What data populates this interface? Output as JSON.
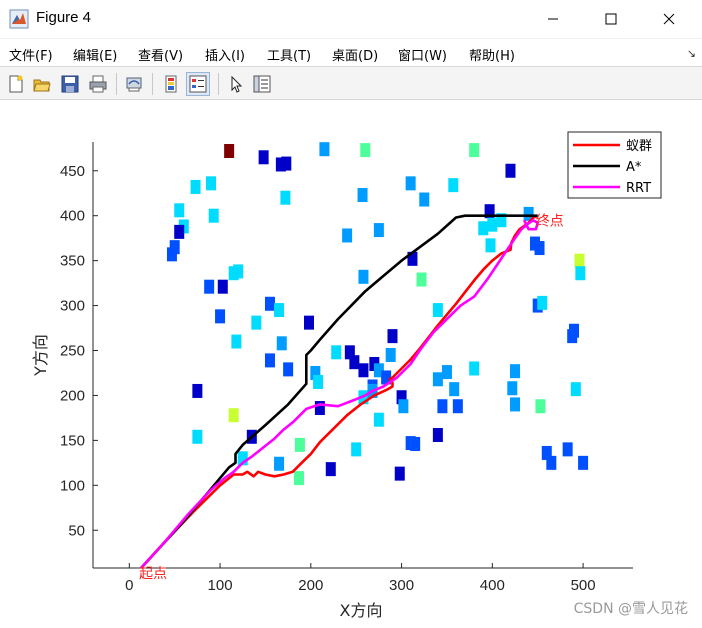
{
  "window": {
    "title": "Figure 4",
    "buttons": {
      "minimize": "minimize",
      "maximize": "maximize",
      "close": "close"
    }
  },
  "menu": {
    "items": [
      "文件(F)",
      "编辑(E)",
      "查看(V)",
      "插入(I)",
      "工具(T)",
      "桌面(D)",
      "窗口(W)",
      "帮助(H)"
    ],
    "overflow_arrow": "↘"
  },
  "toolbar": {
    "icons": [
      "new-figure-icon",
      "open-file-icon",
      "save-icon",
      "print-icon",
      "print-preview-icon",
      "colorbar-icon",
      "legend-icon",
      "pointer-icon",
      "property-editor-icon"
    ]
  },
  "watermark": "CSDN @雪人见花",
  "chart_data": {
    "type": "line",
    "xlabel": "X方向",
    "ylabel": "Y方向",
    "xlim": [
      -40,
      555
    ],
    "ylim": [
      8,
      482
    ],
    "xticks": [
      0,
      100,
      200,
      300,
      400,
      500
    ],
    "yticks": [
      50,
      100,
      150,
      200,
      250,
      300,
      350,
      400,
      450
    ],
    "grid": false,
    "legend_position": "top-right",
    "annotations": [
      {
        "text": "起点",
        "x": 13,
        "y": 8
      },
      {
        "text": "终点",
        "x": 450,
        "y": 400
      }
    ],
    "series": [
      {
        "name": "蚁群",
        "color": "#ff0000",
        "x": [
          13,
          40,
          70,
          100,
          115,
          125,
          130,
          137,
          142,
          150,
          160,
          170,
          180,
          190,
          200,
          210,
          225,
          240,
          255,
          270,
          283,
          290,
          290,
          287,
          290,
          300,
          310,
          320,
          330,
          340,
          350,
          360,
          370,
          380,
          390,
          400,
          410,
          420,
          421,
          425,
          430,
          440,
          445,
          450
        ],
        "y": [
          8,
          38,
          70,
          100,
          112,
          112,
          115,
          110,
          115,
          112,
          110,
          112,
          115,
          125,
          135,
          148,
          163,
          178,
          190,
          200,
          206,
          210,
          214,
          218,
          220,
          230,
          240,
          252,
          265,
          278,
          290,
          302,
          315,
          328,
          340,
          350,
          358,
          362,
          370,
          378,
          385,
          392,
          398,
          400
        ]
      },
      {
        "name": "A*",
        "color": "#000000",
        "x": [
          13,
          60,
          110,
          117,
          117,
          125,
          150,
          175,
          195,
          195,
          200,
          210,
          230,
          260,
          300,
          340,
          360,
          370,
          380,
          400,
          420,
          435,
          450
        ],
        "y": [
          8,
          60,
          120,
          125,
          135,
          145,
          167,
          190,
          213,
          245,
          250,
          262,
          285,
          316,
          350,
          380,
          398,
          400,
          400,
          400,
          400,
          400,
          400
        ]
      },
      {
        "name": "RRT",
        "color": "#ff00ff",
        "x": [
          13,
          40,
          65,
          90,
          105,
          115,
          125,
          135,
          145,
          160,
          170,
          180,
          195,
          210,
          230,
          248,
          260,
          268,
          280,
          295,
          310,
          320,
          335,
          350,
          365,
          380,
          395,
          405,
          415,
          425,
          432,
          438,
          445,
          450,
          448,
          440,
          435
        ],
        "y": [
          8,
          38,
          68,
          95,
          108,
          115,
          125,
          132,
          140,
          152,
          162,
          170,
          185,
          190,
          188,
          195,
          200,
          205,
          210,
          220,
          235,
          250,
          270,
          285,
          300,
          310,
          330,
          345,
          360,
          375,
          385,
          390,
          395,
          392,
          385,
          385,
          395
        ]
      }
    ],
    "scatter_marks": {
      "colors": [
        "#00008f",
        "#0000c8",
        "#0050ff",
        "#009cff",
        "#00dcff",
        "#4dff9a",
        "#c8ff30",
        "#800000"
      ],
      "points": [
        [
          110,
          472,
          7
        ],
        [
          148,
          465,
          1
        ],
        [
          167,
          457,
          1
        ],
        [
          173,
          458,
          1
        ],
        [
          215,
          474,
          3
        ],
        [
          260,
          473,
          5
        ],
        [
          380,
          473,
          5
        ],
        [
          73,
          432,
          4
        ],
        [
          90,
          436,
          4
        ],
        [
          172,
          420,
          4
        ],
        [
          257,
          423,
          3
        ],
        [
          310,
          436,
          3
        ],
        [
          325,
          418,
          3
        ],
        [
          357,
          434,
          4
        ],
        [
          420,
          450,
          1
        ],
        [
          55,
          406,
          4
        ],
        [
          60,
          388,
          4
        ],
        [
          93,
          400,
          4
        ],
        [
          397,
          405,
          1
        ],
        [
          400,
          390,
          4
        ],
        [
          410,
          395,
          4
        ],
        [
          440,
          402,
          3
        ],
        [
          55,
          382,
          1
        ],
        [
          50,
          365,
          2
        ],
        [
          47,
          357,
          2
        ],
        [
          240,
          378,
          3
        ],
        [
          275,
          384,
          3
        ],
        [
          312,
          352,
          1
        ],
        [
          390,
          386,
          4
        ],
        [
          398,
          367,
          4
        ],
        [
          447,
          369,
          2
        ],
        [
          452,
          364,
          2
        ],
        [
          496,
          350,
          6
        ],
        [
          497,
          336,
          4
        ],
        [
          115,
          336,
          4
        ],
        [
          120,
          338,
          4
        ],
        [
          258,
          332,
          3
        ],
        [
          322,
          329,
          5
        ],
        [
          88,
          321,
          2
        ],
        [
          103,
          321,
          1
        ],
        [
          155,
          302,
          2
        ],
        [
          165,
          295,
          4
        ],
        [
          100,
          288,
          2
        ],
        [
          140,
          281,
          4
        ],
        [
          198,
          281,
          1
        ],
        [
          340,
          295,
          4
        ],
        [
          450,
          300,
          2
        ],
        [
          455,
          303,
          4
        ],
        [
          488,
          266,
          2
        ],
        [
          490,
          272,
          2
        ],
        [
          118,
          260,
          4
        ],
        [
          168,
          258,
          3
        ],
        [
          290,
          266,
          1
        ],
        [
          228,
          248,
          4
        ],
        [
          243,
          248,
          1
        ],
        [
          248,
          237,
          1
        ],
        [
          258,
          228,
          1
        ],
        [
          270,
          235,
          1
        ],
        [
          275,
          228,
          3
        ],
        [
          288,
          245,
          3
        ],
        [
          155,
          239,
          2
        ],
        [
          175,
          229,
          2
        ],
        [
          205,
          225,
          3
        ],
        [
          208,
          215,
          4
        ],
        [
          268,
          210,
          2
        ],
        [
          283,
          220,
          2
        ],
        [
          350,
          226,
          3
        ],
        [
          380,
          230,
          4
        ],
        [
          425,
          227,
          3
        ],
        [
          340,
          218,
          3
        ],
        [
          75,
          205,
          1
        ],
        [
          210,
          186,
          1
        ],
        [
          258,
          198,
          4
        ],
        [
          268,
          205,
          3
        ],
        [
          300,
          198,
          1
        ],
        [
          302,
          188,
          3
        ],
        [
          345,
          188,
          2
        ],
        [
          362,
          188,
          2
        ],
        [
          358,
          207,
          3
        ],
        [
          422,
          208,
          3
        ],
        [
          425,
          190,
          3
        ],
        [
          453,
          188,
          5
        ],
        [
          492,
          207,
          4
        ],
        [
          275,
          173,
          4
        ],
        [
          115,
          178,
          6
        ],
        [
          135,
          154,
          1
        ],
        [
          75,
          154,
          4
        ],
        [
          188,
          145,
          5
        ],
        [
          250,
          140,
          4
        ],
        [
          310,
          147,
          2
        ],
        [
          315,
          146,
          2
        ],
        [
          340,
          156,
          1
        ],
        [
          125,
          130,
          4
        ],
        [
          165,
          124,
          3
        ],
        [
          222,
          118,
          1
        ],
        [
          298,
          113,
          1
        ],
        [
          187,
          108,
          5
        ],
        [
          460,
          136,
          2
        ],
        [
          465,
          125,
          2
        ],
        [
          483,
          140,
          2
        ],
        [
          500,
          125,
          2
        ]
      ]
    }
  }
}
